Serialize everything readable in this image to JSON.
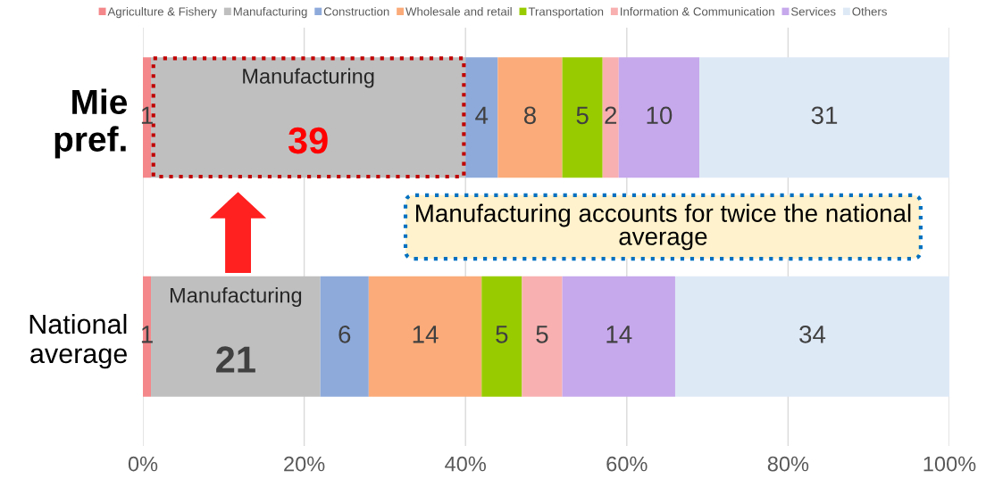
{
  "chart_data": {
    "type": "bar",
    "orientation": "horizontal",
    "stacked": true,
    "categories": [
      "Mie\npref.",
      "National\naverage"
    ],
    "series": [
      {
        "name": "Agriculture & Fishery",
        "color": "#f4878a",
        "values": [
          1,
          1
        ]
      },
      {
        "name": "Manufacturing",
        "color": "#bfbfbf",
        "values": [
          39,
          21
        ]
      },
      {
        "name": "Construction",
        "color": "#8eaadb",
        "values": [
          4,
          6
        ]
      },
      {
        "name": "Wholesale and retail",
        "color": "#fbab79",
        "values": [
          8,
          14
        ]
      },
      {
        "name": "Transportation",
        "color": "#99cc00",
        "values": [
          5,
          5
        ]
      },
      {
        "name": "Information & Communication",
        "color": "#f9b0b0",
        "values": [
          2,
          5
        ]
      },
      {
        "name": "Services",
        "color": "#c6a8ec",
        "values": [
          10,
          14
        ]
      },
      {
        "name": "Others",
        "color": "#dee9f6",
        "values": [
          31,
          34
        ]
      }
    ],
    "data_labels": true,
    "xlim": [
      0,
      100
    ],
    "xticks": [
      {
        "value": 0,
        "label": "0%"
      },
      {
        "value": 20,
        "label": "20%"
      },
      {
        "value": 40,
        "label": "40%"
      },
      {
        "value": 60,
        "label": "60%"
      },
      {
        "value": 80,
        "label": "80%"
      },
      {
        "value": 100,
        "label": "100%"
      }
    ],
    "grid": "x",
    "legend": "top",
    "annotations": [
      "Manufacturing",
      "Manufacturing",
      "Manufacturing accounts for twice the national\naverage"
    ]
  }
}
